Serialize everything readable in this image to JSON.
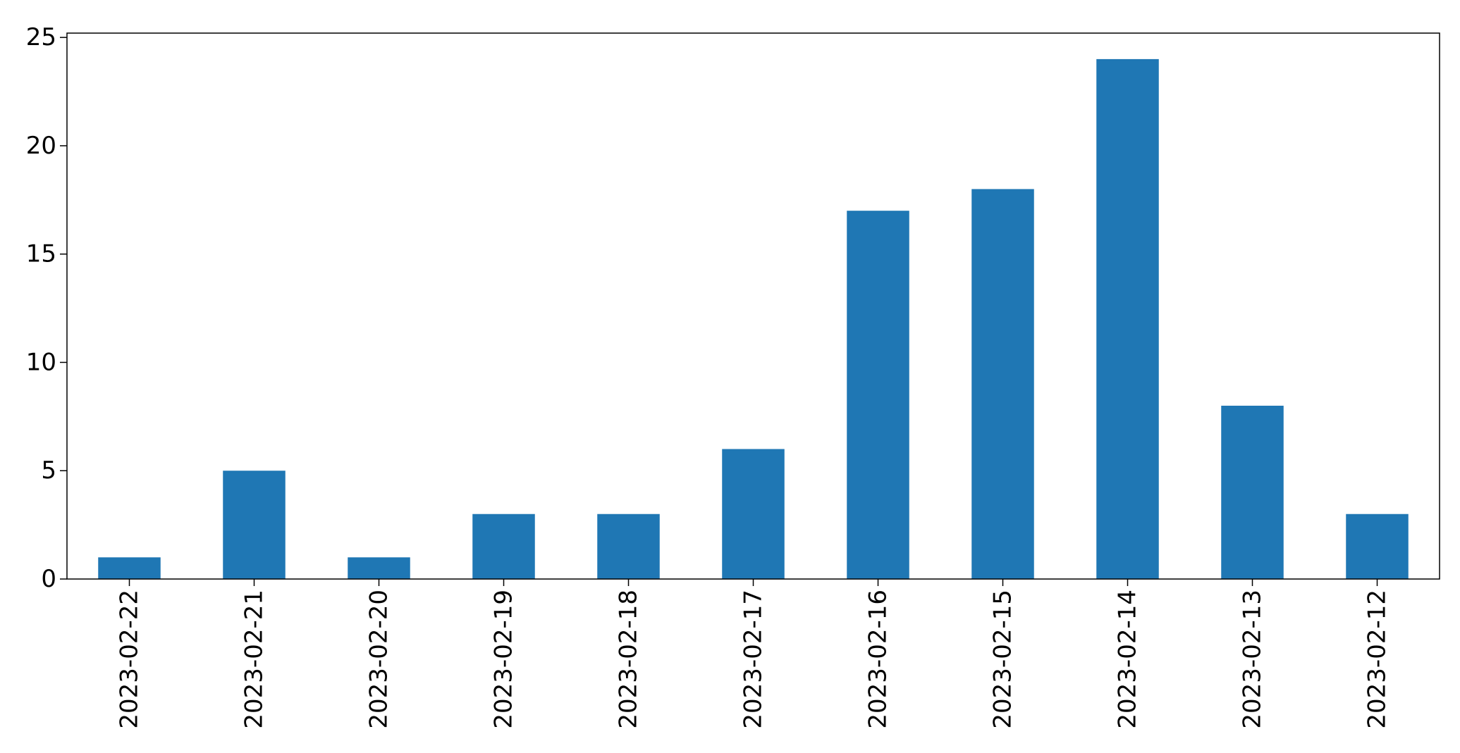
{
  "chart_data": {
    "type": "bar",
    "title": "",
    "xlabel": "",
    "ylabel": "",
    "categories": [
      "2023-02-22",
      "2023-02-21",
      "2023-02-20",
      "2023-02-19",
      "2023-02-18",
      "2023-02-17",
      "2023-02-16",
      "2023-02-15",
      "2023-02-14",
      "2023-02-13",
      "2023-02-12"
    ],
    "values": [
      1,
      5,
      1,
      3,
      3,
      6,
      17,
      18,
      24,
      8,
      3
    ],
    "ylim": [
      0,
      25.2
    ],
    "yticks": [
      0,
      5,
      10,
      15,
      20,
      25
    ],
    "ytick_labels": [
      "0",
      "5",
      "10",
      "15",
      "20",
      "25"
    ],
    "bar_color": "#1f77b4",
    "grid": false,
    "legend": "none"
  }
}
